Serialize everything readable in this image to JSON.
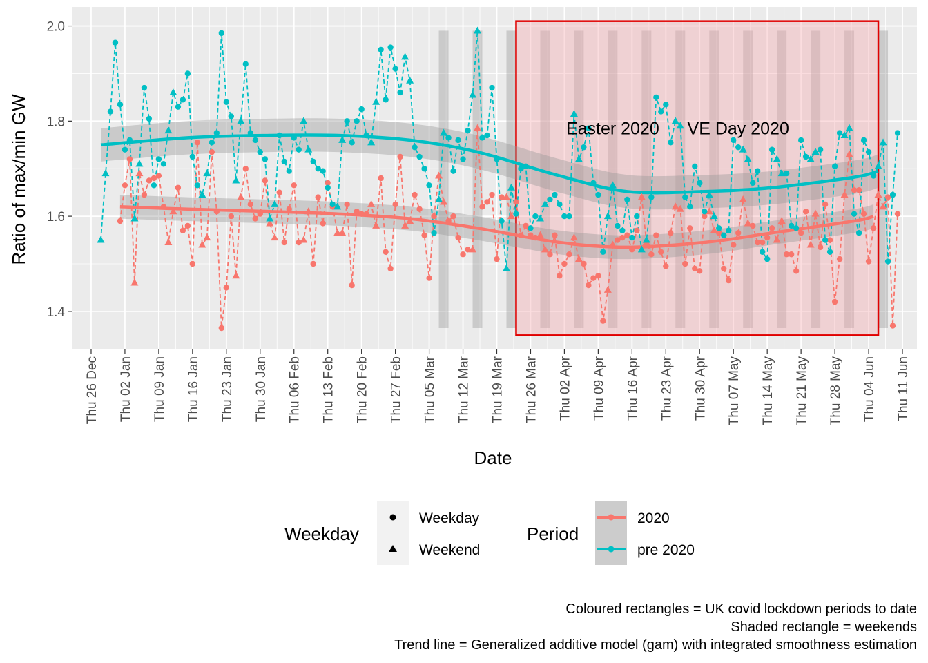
{
  "chart_data": {
    "type": "line",
    "xlabel": "Date",
    "ylabel": "Ratio of max/min GW",
    "ylim": [
      1.32,
      2.04
    ],
    "xlim": [
      "2019-12-22",
      "2020-06-14"
    ],
    "y_ticks": [
      "1.4",
      "1.6",
      "1.8",
      "2.0"
    ],
    "y_tick_values": [
      1.4,
      1.6,
      1.8,
      2.0
    ],
    "x_ticks": [
      {
        "date": "2019-12-26",
        "label": "Thu 26 Dec"
      },
      {
        "date": "2020-01-02",
        "label": "Thu 02 Jan"
      },
      {
        "date": "2020-01-09",
        "label": "Thu 09 Jan"
      },
      {
        "date": "2020-01-16",
        "label": "Thu 16 Jan"
      },
      {
        "date": "2020-01-23",
        "label": "Thu 23 Jan"
      },
      {
        "date": "2020-01-30",
        "label": "Thu 30 Jan"
      },
      {
        "date": "2020-02-06",
        "label": "Thu 06 Feb"
      },
      {
        "date": "2020-02-13",
        "label": "Thu 13 Feb"
      },
      {
        "date": "2020-02-20",
        "label": "Thu 20 Feb"
      },
      {
        "date": "2020-02-27",
        "label": "Thu 27 Feb"
      },
      {
        "date": "2020-03-05",
        "label": "Thu 05 Mar"
      },
      {
        "date": "2020-03-12",
        "label": "Thu 12 Mar"
      },
      {
        "date": "2020-03-19",
        "label": "Thu 19 Mar"
      },
      {
        "date": "2020-03-26",
        "label": "Thu 26 Mar"
      },
      {
        "date": "2020-04-02",
        "label": "Thu 02 Apr"
      },
      {
        "date": "2020-04-09",
        "label": "Thu 09 Apr"
      },
      {
        "date": "2020-04-16",
        "label": "Thu 16 Apr"
      },
      {
        "date": "2020-04-23",
        "label": "Thu 23 Apr"
      },
      {
        "date": "2020-04-30",
        "label": "Thu 30 Apr"
      },
      {
        "date": "2020-05-07",
        "label": "Thu 07 May"
      },
      {
        "date": "2020-05-14",
        "label": "Thu 14 May"
      },
      {
        "date": "2020-05-21",
        "label": "Thu 21 May"
      },
      {
        "date": "2020-05-28",
        "label": "Thu 28 May"
      },
      {
        "date": "2020-06-04",
        "label": "Thu 04 Jun"
      },
      {
        "date": "2020-06-11",
        "label": "Thu 11 Jun"
      }
    ],
    "grid": true,
    "series": [
      {
        "name": "2020",
        "color": "#F8766D",
        "start": "2020-01-01",
        "values": [
          1.59,
          1.665,
          1.72,
          1.46,
          1.69,
          1.645,
          1.675,
          1.68,
          1.685,
          1.62,
          1.545,
          1.61,
          1.66,
          1.57,
          1.58,
          1.5,
          1.755,
          1.54,
          1.555,
          1.735,
          1.61,
          1.365,
          1.45,
          1.6,
          1.475,
          1.64,
          1.7,
          1.625,
          1.595,
          1.605,
          1.675,
          1.585,
          1.555,
          1.65,
          1.545,
          1.615,
          1.665,
          1.545,
          1.55,
          1.61,
          1.5,
          1.64,
          1.585,
          1.67,
          1.62,
          1.565,
          1.565,
          1.625,
          1.455,
          1.61,
          1.605,
          1.605,
          1.625,
          1.58,
          1.68,
          1.525,
          1.49,
          1.625,
          1.725,
          1.58,
          1.59,
          1.645,
          1.615,
          1.56,
          1.47,
          1.6,
          1.685,
          1.63,
          1.59,
          1.6,
          1.555,
          1.52,
          1.53,
          1.53,
          1.785,
          1.62,
          1.63,
          1.645,
          1.51,
          1.64,
          1.64,
          1.6,
          1.63,
          1.56,
          1.58,
          1.56,
          1.555,
          1.56,
          1.53,
          1.52,
          1.56,
          1.475,
          1.5,
          1.52,
          1.555,
          1.51,
          1.5,
          1.455,
          1.47,
          1.475,
          1.38,
          1.445,
          1.54,
          1.55,
          1.555,
          1.56,
          1.53,
          1.57,
          1.64,
          1.545,
          1.52,
          1.56,
          1.525,
          1.495,
          1.565,
          1.62,
          1.615,
          1.5,
          1.575,
          1.49,
          1.485,
          1.6,
          1.61,
          1.57,
          1.565,
          1.49,
          1.465,
          1.54,
          1.565,
          1.635,
          1.585,
          1.58,
          1.545,
          1.545,
          1.555,
          1.575,
          1.55,
          1.59,
          1.52,
          1.52,
          1.485,
          1.565,
          1.61,
          1.54,
          1.605,
          1.535,
          1.625,
          1.55,
          1.42,
          1.51,
          1.645,
          1.73,
          1.655,
          1.655,
          1.605,
          1.505,
          1.575,
          1.645,
          1.62,
          1.64,
          1.37,
          1.605
        ]
      },
      {
        "name": "pre 2020",
        "color": "#00BFC4",
        "start": "2019-12-28",
        "values": [
          1.55,
          1.69,
          1.82,
          1.965,
          1.835,
          1.74,
          1.76,
          1.595,
          1.71,
          1.87,
          1.805,
          1.665,
          1.72,
          1.71,
          1.78,
          1.86,
          1.83,
          1.845,
          1.9,
          1.725,
          1.665,
          1.645,
          1.69,
          1.755,
          1.775,
          1.985,
          1.84,
          1.81,
          1.675,
          1.8,
          1.92,
          1.775,
          1.76,
          1.735,
          1.72,
          1.595,
          1.625,
          1.77,
          1.715,
          1.695,
          1.765,
          1.74,
          1.8,
          1.74,
          1.715,
          1.7,
          1.695,
          1.66,
          1.625,
          1.62,
          1.76,
          1.8,
          1.755,
          1.8,
          1.825,
          1.77,
          1.755,
          1.84,
          1.95,
          1.845,
          1.955,
          1.91,
          1.86,
          1.935,
          1.885,
          1.745,
          1.725,
          1.7,
          1.665,
          1.565,
          1.635,
          1.775,
          1.765,
          1.695,
          1.76,
          1.72,
          1.78,
          1.855,
          1.99,
          1.765,
          1.77,
          1.87,
          1.72,
          1.59,
          1.49,
          1.66,
          1.605,
          1.7,
          1.705,
          1.575,
          1.6,
          1.595,
          1.625,
          1.635,
          1.645,
          1.625,
          1.6,
          1.6,
          1.815,
          1.72,
          1.745,
          1.785,
          1.67,
          1.645,
          1.525,
          1.6,
          1.665,
          1.58,
          1.57,
          1.635,
          1.555,
          1.6,
          1.53,
          1.55,
          1.64,
          1.85,
          1.82,
          1.835,
          1.755,
          1.8,
          1.79,
          1.64,
          1.62,
          1.705,
          1.67,
          1.61,
          1.645,
          1.6,
          1.575,
          1.56,
          1.57,
          1.76,
          1.745,
          1.74,
          1.72,
          1.67,
          1.695,
          1.525,
          1.51,
          1.74,
          1.72,
          1.69,
          1.69,
          1.58,
          1.575,
          1.76,
          1.725,
          1.72,
          1.735,
          1.74,
          1.55,
          1.525,
          1.705,
          1.775,
          1.77,
          1.785,
          1.605,
          1.565,
          1.76,
          1.735,
          1.685,
          1.705,
          1.755,
          1.505,
          1.645,
          1.775
        ]
      }
    ],
    "trend_lines": [
      {
        "name": "2020",
        "color": "#F8766D",
        "x": [
          "2020-01-01",
          "2020-01-15",
          "2020-02-01",
          "2020-02-15",
          "2020-03-01",
          "2020-03-15",
          "2020-04-01",
          "2020-04-15",
          "2020-05-01",
          "2020-05-15",
          "2020-06-01",
          "2020-06-05"
        ],
        "y": [
          1.62,
          1.615,
          1.61,
          1.605,
          1.595,
          1.575,
          1.545,
          1.535,
          1.545,
          1.565,
          1.59,
          1.6
        ],
        "se": 0.025
      },
      {
        "name": "pre 2020",
        "color": "#00BFC4",
        "x": [
          "2019-12-28",
          "2020-01-15",
          "2020-02-01",
          "2020-02-15",
          "2020-03-01",
          "2020-03-15",
          "2020-04-01",
          "2020-04-15",
          "2020-05-01",
          "2020-05-15",
          "2020-06-01",
          "2020-06-06"
        ],
        "y": [
          1.75,
          1.765,
          1.77,
          1.77,
          1.76,
          1.735,
          1.685,
          1.652,
          1.652,
          1.66,
          1.682,
          1.695
        ],
        "se": 0.035
      }
    ],
    "lockdown_period": {
      "start": "2020-03-23",
      "end": "2020-06-06",
      "color": "#E00000"
    },
    "weekend_bars": [
      "2020-03-07",
      "2020-03-14",
      "2020-03-21",
      "2020-03-28",
      "2020-04-04",
      "2020-04-11",
      "2020-04-18",
      "2020-04-25",
      "2020-05-02",
      "2020-05-09",
      "2020-05-16",
      "2020-05-23",
      "2020-05-30",
      "2020-06-06"
    ],
    "annotations": [
      {
        "text": "Easter 2020",
        "date": "2020-04-12",
        "y": 1.785
      },
      {
        "text": "VE Day 2020",
        "date": "2020-05-08",
        "y": 1.785
      }
    ],
    "legend": {
      "placement": "bottom",
      "weekday_title": "Weekday",
      "weekday_items": [
        "Weekday",
        "Weekend"
      ],
      "period_title": "Period",
      "period_items": [
        "2020",
        "pre 2020"
      ]
    }
  },
  "caption": {
    "line1": "Coloured rectangles = UK covid lockdown periods to date",
    "line2": "Shaded rectangle = weekends",
    "line3": "Trend line = Generalized additive model (gam) with integrated smoothness estimation"
  }
}
